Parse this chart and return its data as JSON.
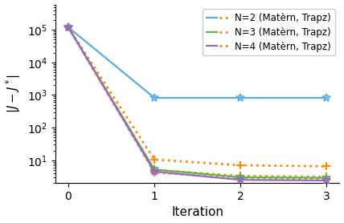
{
  "iterations": [
    0,
    1,
    2,
    3
  ],
  "n2_solid": [
    120000,
    820,
    820,
    820
  ],
  "n3_solid": [
    120000,
    5.2,
    3.0,
    2.9
  ],
  "n4_solid": [
    120000,
    4.5,
    2.5,
    2.4
  ],
  "n2_dotted": [
    120000,
    10.5,
    7.0,
    6.5
  ],
  "n3_dotted": [
    120000,
    5.0,
    3.3,
    3.1
  ],
  "n4_dotted": [
    120000,
    4.2,
    2.8,
    2.7
  ],
  "color_n2": "#5aade0",
  "color_n3": "#55bb44",
  "color_n4": "#9966cc",
  "color_dotted": "#ff8800",
  "ylabel": "$|J - J^*|$",
  "xlabel": "Iteration",
  "ylim_low": 2.0,
  "ylim_high": 600000,
  "xlim_low": -0.15,
  "xlim_high": 3.15,
  "xticks": [
    0,
    1,
    2,
    3
  ],
  "figsize": [
    4.28,
    2.78
  ],
  "dpi": 100,
  "legend_labels": [
    "N=2 (Matèrn, Trapz)",
    "N=3 (Matèrn, Trapz)",
    "N=4 (Matèrn, Trapz)"
  ]
}
